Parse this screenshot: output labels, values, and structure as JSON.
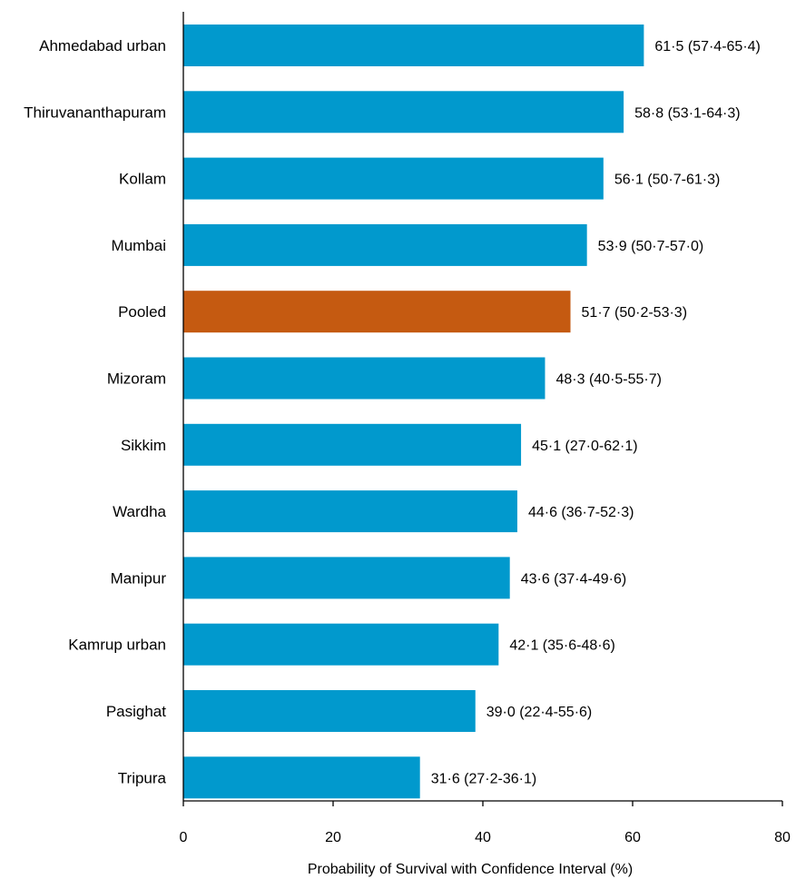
{
  "chart_data": {
    "type": "bar",
    "orientation": "horizontal",
    "title": "",
    "xlabel": "Probability of Survival  with Confidence Interval (%)",
    "ylabel": "",
    "xlim": [
      0,
      80
    ],
    "xticks": [
      "0",
      "20",
      "40",
      "60",
      "80"
    ],
    "grid": false,
    "legend": "none",
    "categories": [
      "Ahmedabad urban",
      "Thiruvananthapuram",
      "Kollam",
      "Mumbai",
      "Pooled",
      "Mizoram",
      "Sikkim",
      "Wardha",
      "Manipur",
      "Kamrup urban",
      "Pasighat",
      "Tripura"
    ],
    "values": [
      61.5,
      58.8,
      56.1,
      53.9,
      51.7,
      48.3,
      45.1,
      44.6,
      43.6,
      42.1,
      39.0,
      31.6
    ],
    "labels": [
      "61·5  (57·4-65·4)",
      "58·8  (53·1-64·3)",
      "56·1  (50·7-61·3)",
      "53·9  (50·7-57·0)",
      "51·7 (50·2-53·3)",
      "48·3  (40·5-55·7)",
      "45·1  (27·0-62·1)",
      "44·6 (36·7-52·3)",
      "43·6  (37·4-49·6)",
      "42·1  (35·6-48·6)",
      "39·0  (22·4-55·6)",
      "31·6  (27·2-36·1)"
    ],
    "colors": {
      "default": "#0199cd",
      "highlight": "#c55a11",
      "axis": "#000000"
    },
    "highlight_category": "Pooled"
  }
}
